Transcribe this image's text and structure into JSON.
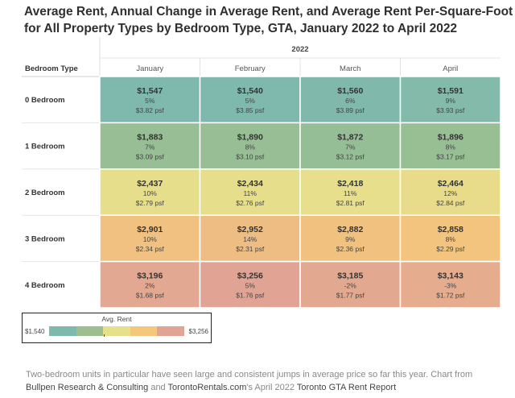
{
  "title_line1": "Average Rent, Annual Change in Average Rent, and Average Rent Per-Square-Foot",
  "title_line2": "for All Property Types by Bedroom Type, GTA, January 2022 to April 2022",
  "chart_data": {
    "type": "heatmap",
    "year_label": "2022",
    "row_header": "Bedroom Type",
    "columns": [
      "January",
      "February",
      "March",
      "April"
    ],
    "rows": [
      {
        "label": "0 Bedroom",
        "cells": [
          {
            "rent": "$1,547",
            "change": "5%",
            "psf": "$3.82 psf",
            "value": 1547
          },
          {
            "rent": "$1,540",
            "change": "5%",
            "psf": "$3.85 psf",
            "value": 1540
          },
          {
            "rent": "$1,560",
            "change": "6%",
            "psf": "$3.89 psf",
            "value": 1560
          },
          {
            "rent": "$1,591",
            "change": "9%",
            "psf": "$3.93 psf",
            "value": 1591
          }
        ]
      },
      {
        "label": "1 Bedroom",
        "cells": [
          {
            "rent": "$1,883",
            "change": "7%",
            "psf": "$3.09 psf",
            "value": 1883
          },
          {
            "rent": "$1,890",
            "change": "8%",
            "psf": "$3.10 psf",
            "value": 1890
          },
          {
            "rent": "$1,872",
            "change": "7%",
            "psf": "$3.12 psf",
            "value": 1872
          },
          {
            "rent": "$1,896",
            "change": "8%",
            "psf": "$3.17 psf",
            "value": 1896
          }
        ]
      },
      {
        "label": "2 Bedroom",
        "cells": [
          {
            "rent": "$2,437",
            "change": "10%",
            "psf": "$2.79 psf",
            "value": 2437
          },
          {
            "rent": "$2,434",
            "change": "11%",
            "psf": "$2.76 psf",
            "value": 2434
          },
          {
            "rent": "$2,418",
            "change": "11%",
            "psf": "$2.81 psf",
            "value": 2418
          },
          {
            "rent": "$2,464",
            "change": "12%",
            "psf": "$2.84 psf",
            "value": 2464
          }
        ]
      },
      {
        "label": "3 Bedroom",
        "cells": [
          {
            "rent": "$2,901",
            "change": "10%",
            "psf": "$2.34 psf",
            "value": 2901
          },
          {
            "rent": "$2,952",
            "change": "14%",
            "psf": "$2.31 psf",
            "value": 2952
          },
          {
            "rent": "$2,882",
            "change": "9%",
            "psf": "$2.36 psf",
            "value": 2882
          },
          {
            "rent": "$2,858",
            "change": "8%",
            "psf": "$2.29 psf",
            "value": 2858
          }
        ]
      },
      {
        "label": "4 Bedroom",
        "cells": [
          {
            "rent": "$3,196",
            "change": "2%",
            "psf": "$1.68 psf",
            "value": 3196
          },
          {
            "rent": "$3,256",
            "change": "5%",
            "psf": "$1.76 psf",
            "value": 3256
          },
          {
            "rent": "$3,185",
            "change": "-2%",
            "psf": "$1.77 psf",
            "value": 3185
          },
          {
            "rent": "$3,143",
            "change": "-3%",
            "psf": "$1.72 psf",
            "value": 3143
          }
        ]
      }
    ],
    "color_scale": {
      "title": "Avg. Rent",
      "min": 1540,
      "max": 3256,
      "min_label": "$1,540",
      "max_label": "$3,256",
      "colors": [
        "#7fb9ad",
        "#9dbf8f",
        "#e6e08d",
        "#f3c77c",
        "#e0a394"
      ]
    }
  },
  "caption": {
    "part1": "Two-bedroom units in particular have seen large and consistent jumps in average price so far this year. Chart from ",
    "link1": "Bullpen Research & Consulting",
    "and": " and ",
    "link2": "TorontoRentals.com",
    "part2": "'s April 2022 ",
    "report": "Toronto GTA Rent Report"
  }
}
